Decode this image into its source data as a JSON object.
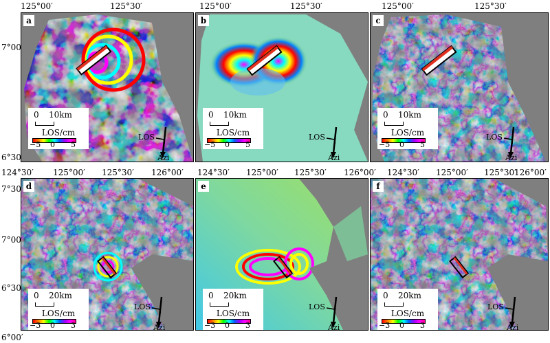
{
  "top_axis": {
    "ticks_a": [
      "125°00′",
      "125°30′"
    ],
    "ticks_b": [
      "125°00′",
      "125°30′"
    ],
    "ticks_c": [
      "125°00′",
      "125°30′"
    ]
  },
  "top_left_axis": [
    "7°00′",
    "6°30′"
  ],
  "bottom_axis": {
    "ticks_d": [
      "124°30′",
      "125°00′",
      "125°30′",
      "126°00′"
    ],
    "ticks_e": [
      "124°30′",
      "125°00′",
      "125°30′",
      "126°00′"
    ],
    "ticks_f": [
      "124°30′",
      "125°00′",
      "125°30′",
      "126°00′"
    ]
  },
  "bottom_left_axis": [
    "7°30′",
    "7°00′",
    "6°30′",
    "6°00′"
  ],
  "panels": [
    {
      "letter": "a",
      "scale0": "0",
      "scale1": "10km",
      "unit": "LOS/cm",
      "min": "−5",
      "mid": "0",
      "max": "5",
      "los": "LOS",
      "azi": "Azi"
    },
    {
      "letter": "b",
      "scale0": "0",
      "scale1": "10km",
      "unit": "LOS/cm",
      "min": "−5",
      "mid": "0",
      "max": "5",
      "los": "LOS",
      "azi": "Azi"
    },
    {
      "letter": "c",
      "scale0": "0",
      "scale1": "10km",
      "unit": "LOS/cm",
      "min": "−5",
      "mid": "0",
      "max": "5",
      "los": "LOS",
      "azi": "Azi"
    },
    {
      "letter": "d",
      "scale0": "0",
      "scale1": "20km",
      "unit": "LOS/cm",
      "min": "−3",
      "mid": "0",
      "max": "3",
      "los": "LOS",
      "azi": "Azi"
    },
    {
      "letter": "e",
      "scale0": "0",
      "scale1": "20km",
      "unit": "LOS/cm",
      "min": "−3",
      "mid": "0",
      "max": "3",
      "los": "LOS",
      "azi": "Azi"
    },
    {
      "letter": "f",
      "scale0": "0",
      "scale1": "20km",
      "unit": "LOS/cm",
      "min": "−3",
      "mid": "0",
      "max": "3",
      "los": "LOS",
      "azi": "Azi"
    }
  ],
  "colors": {
    "background": "#7f7f7f",
    "fault_top": "#e03020",
    "fault_outline": "#000000"
  }
}
